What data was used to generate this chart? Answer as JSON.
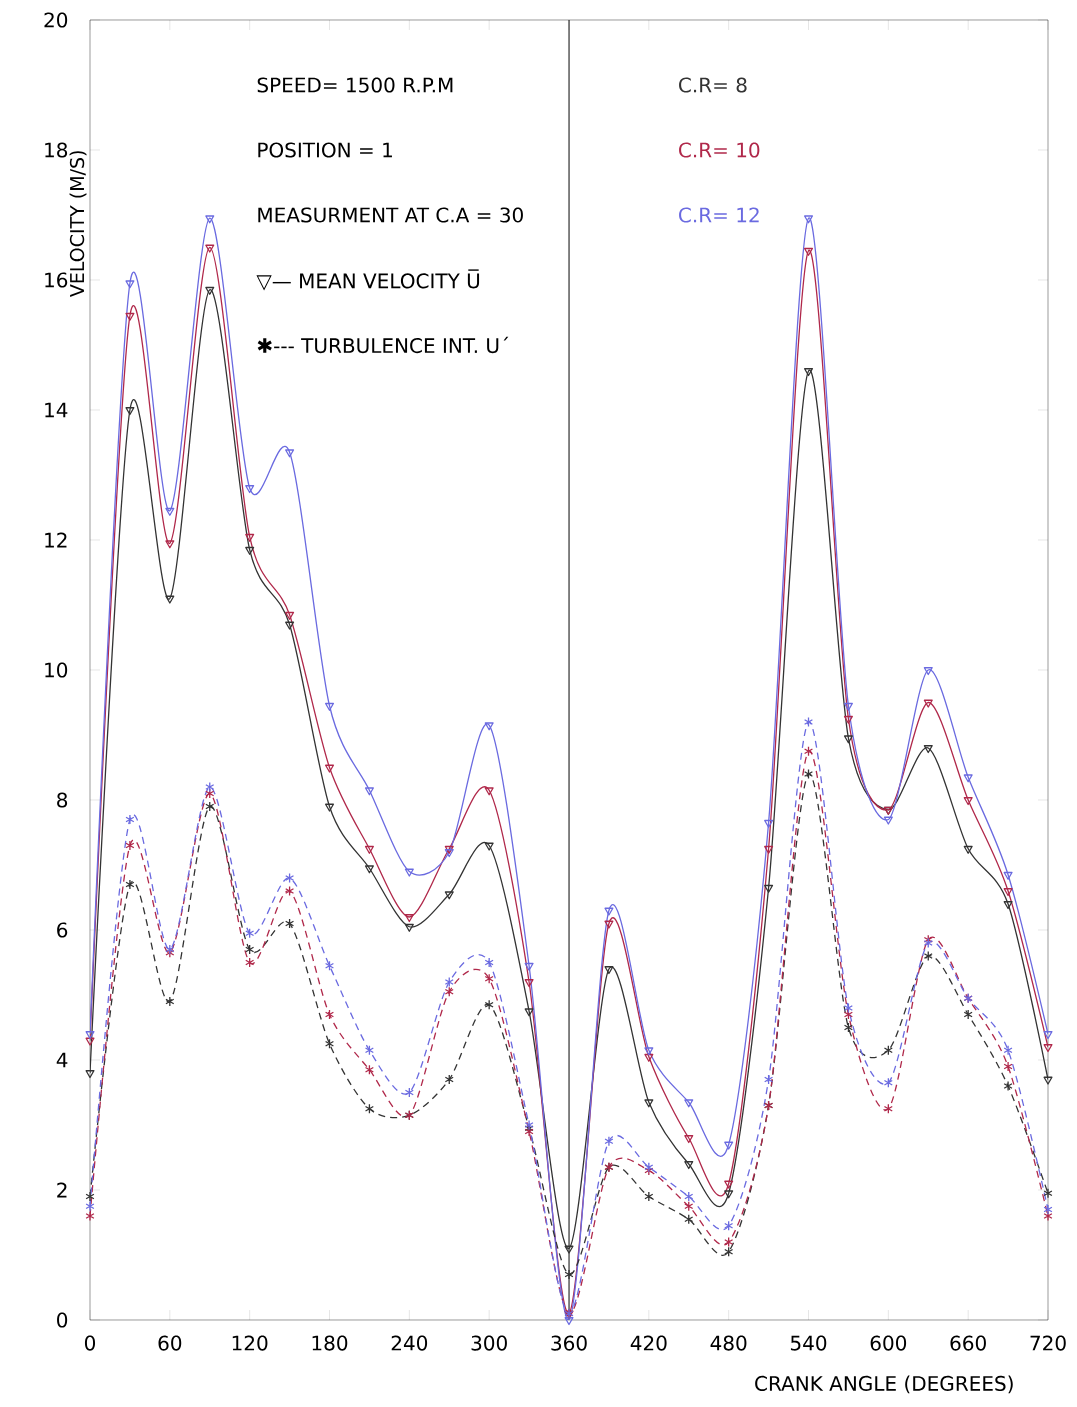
{
  "chart_data": {
    "type": "line",
    "xlabel": "CRANK ANGLE  (DEGREES)",
    "ylabel": "VELOCITY  (M/S)",
    "x": [
      0,
      30,
      60,
      90,
      120,
      150,
      180,
      210,
      240,
      270,
      300,
      330,
      360,
      390,
      420,
      450,
      480,
      510,
      540,
      570,
      600,
      630,
      660,
      690,
      720
    ],
    "series": [
      {
        "name": "C.R= 8",
        "color": "#333333",
        "line_style": "solid",
        "marker": "triangle",
        "values": [
          3.8,
          14.0,
          11.1,
          15.85,
          11.85,
          10.7,
          7.9,
          6.95,
          6.05,
          6.55,
          7.3,
          4.75,
          1.1,
          5.4,
          3.35,
          2.4,
          1.95,
          6.65,
          14.6,
          8.95,
          7.85,
          8.8,
          7.25,
          6.4,
          3.7
        ]
      },
      {
        "name": "C.R= 10",
        "color": "#b0284a",
        "line_style": "solid",
        "marker": "triangle",
        "values": [
          4.3,
          15.45,
          11.95,
          16.5,
          12.05,
          10.85,
          8.5,
          7.25,
          6.2,
          7.25,
          8.15,
          5.2,
          0.1,
          6.1,
          4.05,
          2.8,
          2.1,
          7.25,
          16.45,
          9.25,
          7.85,
          9.5,
          8.0,
          6.6,
          4.2
        ]
      },
      {
        "name": "C.R= 12",
        "color": "#6a6ae0",
        "line_style": "solid",
        "marker": "triangle",
        "values": [
          4.4,
          15.95,
          12.45,
          16.95,
          12.8,
          13.35,
          9.45,
          8.15,
          6.9,
          7.2,
          9.15,
          5.45,
          0.0,
          6.3,
          4.15,
          3.35,
          2.7,
          7.65,
          16.95,
          9.45,
          7.7,
          10.0,
          8.35,
          6.85,
          4.4
        ]
      },
      {
        "color": "#333333",
        "line_style": "dashed",
        "marker": "cross",
        "values": [
          1.9,
          6.7,
          4.9,
          7.9,
          5.7,
          6.1,
          4.25,
          3.25,
          3.15,
          3.7,
          4.85,
          2.95,
          0.7,
          2.35,
          1.9,
          1.55,
          1.05,
          3.3,
          8.4,
          4.5,
          4.15,
          5.6,
          4.7,
          3.6,
          1.95
        ]
      },
      {
        "color": "#b0284a",
        "line_style": "dashed",
        "marker": "cross",
        "values": [
          1.6,
          7.3,
          5.65,
          8.1,
          5.5,
          6.6,
          4.7,
          3.85,
          3.15,
          5.05,
          5.25,
          2.9,
          0.1,
          2.35,
          2.3,
          1.75,
          1.2,
          3.3,
          8.75,
          4.7,
          3.25,
          5.85,
          4.95,
          3.9,
          1.6
        ]
      },
      {
        "color": "#6a6ae0",
        "line_style": "dashed",
        "marker": "cross",
        "values": [
          1.75,
          7.7,
          5.7,
          8.2,
          5.95,
          6.8,
          5.45,
          4.15,
          3.5,
          5.2,
          5.5,
          3.0,
          0.1,
          2.75,
          2.35,
          1.9,
          1.45,
          3.7,
          9.2,
          4.8,
          3.65,
          5.8,
          4.95,
          4.15,
          1.7
        ]
      }
    ],
    "xlim": [
      0,
      720
    ],
    "ylim": [
      0,
      20
    ],
    "xticks": [
      0,
      60,
      120,
      180,
      240,
      300,
      360,
      420,
      480,
      540,
      600,
      660,
      720
    ],
    "yticks": [
      0,
      2,
      4,
      6,
      8,
      10,
      12,
      14,
      16,
      18,
      20
    ],
    "ref_lines": [
      {
        "axis": "x",
        "value": 360,
        "color": "#222222"
      }
    ],
    "legend": "top right",
    "grid": false,
    "annotations": [
      "SPEED= 1500 R.P.M",
      "POSITION = 1",
      "MEASURMENT AT C.A = 30",
      "▽— MEAN VELOCITY  U̅",
      "✱--- TURBULENCE INT.  U´"
    ]
  }
}
